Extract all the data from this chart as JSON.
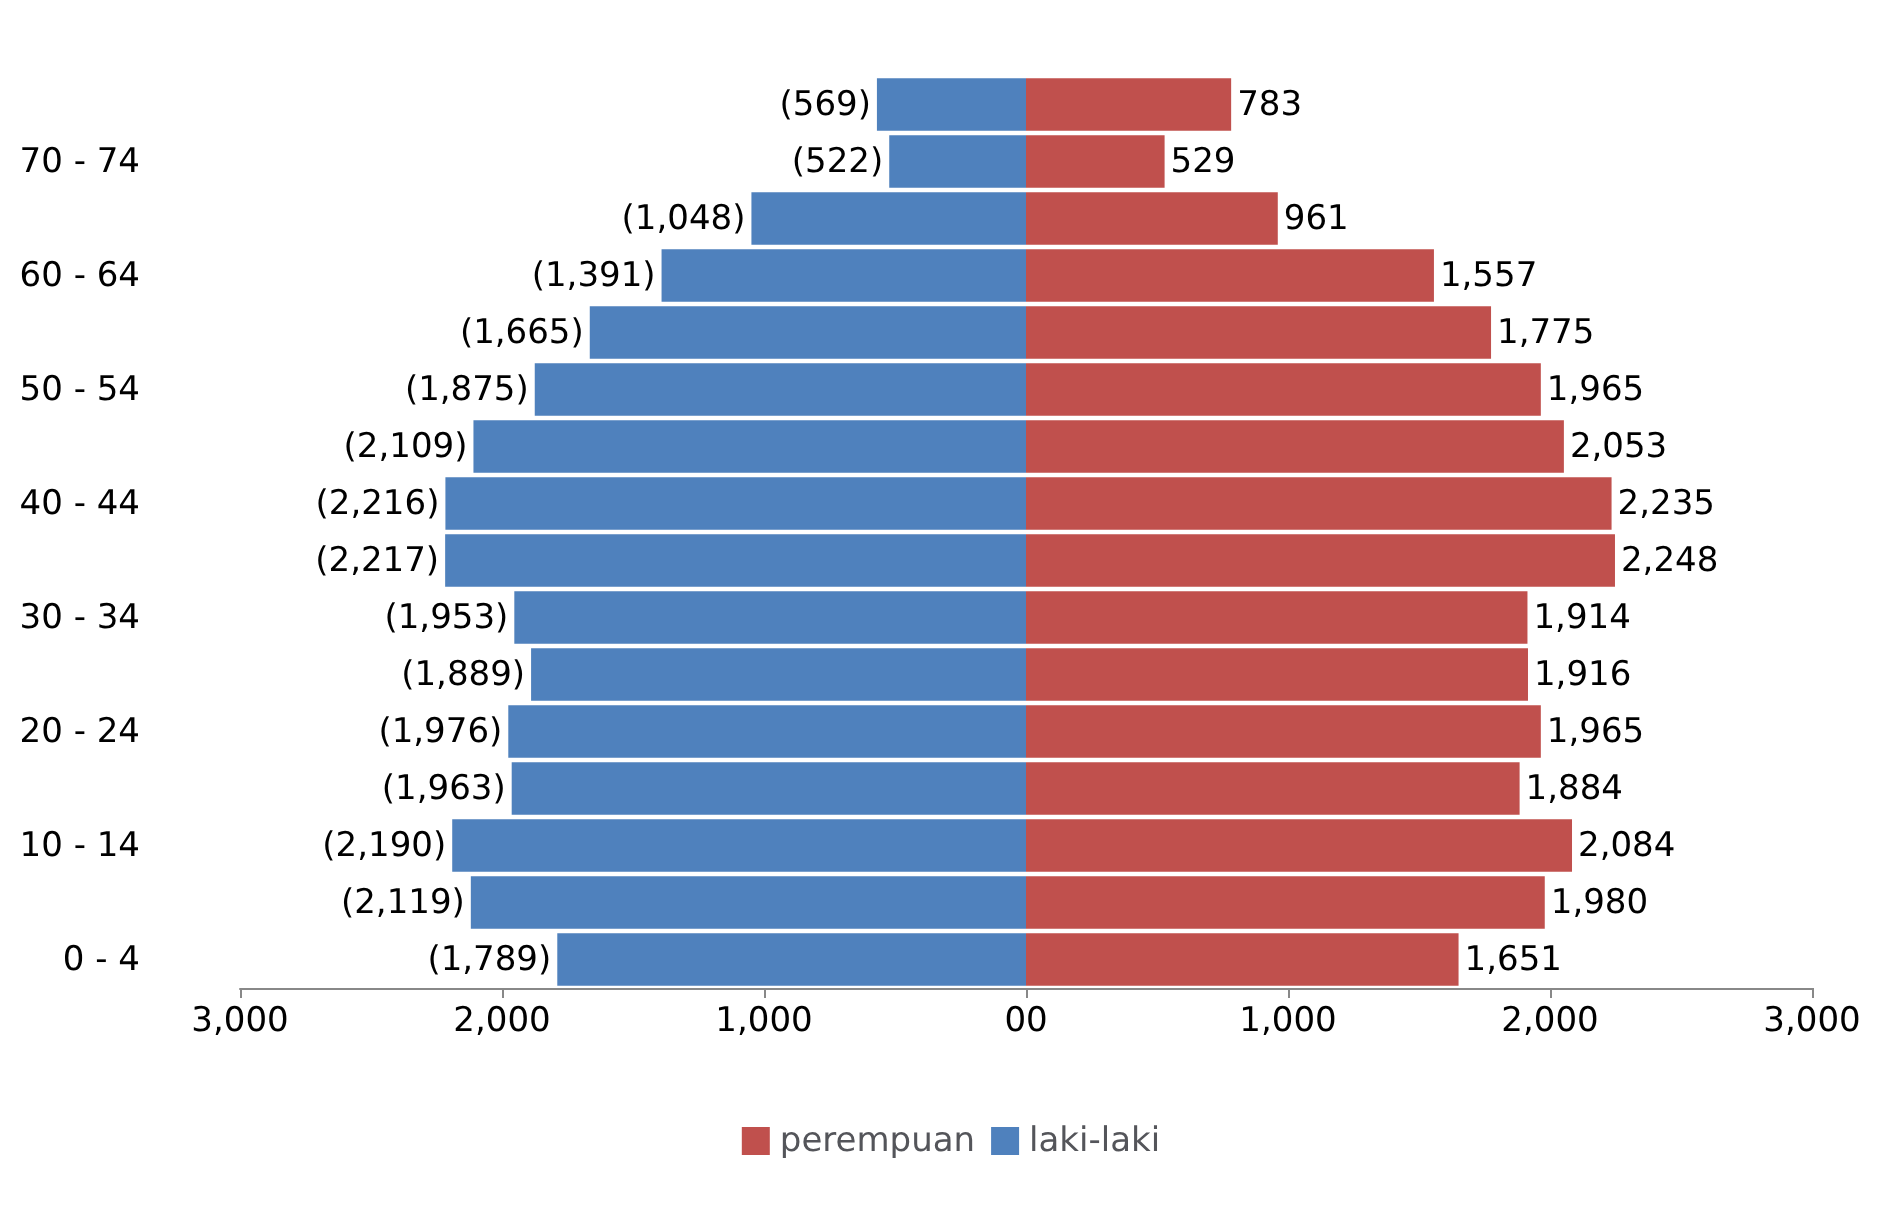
{
  "chart_data": {
    "type": "bar",
    "orientation": "horizontal",
    "stacked": true,
    "categories": [
      null,
      "70 - 74",
      null,
      "60 - 64",
      null,
      "50 - 54",
      null,
      "40 - 44",
      null,
      "30 - 34",
      null,
      "20 - 24",
      null,
      "10 - 14",
      null,
      "0 - 4"
    ],
    "series": [
      {
        "name": "perempuan",
        "color": "#c0504d",
        "values": [
          783,
          529,
          961,
          1557,
          1775,
          1965,
          2053,
          2235,
          2248,
          1914,
          1916,
          1965,
          1884,
          2084,
          1980,
          1651
        ],
        "value_labels": [
          "783",
          "529",
          "961",
          "1,557",
          "1,775",
          "1,965",
          "2,053",
          "2,235",
          "2,248",
          "1,914",
          "1,916",
          "1,965",
          "1,884",
          "2,084",
          "1,980",
          "1,651"
        ]
      },
      {
        "name": "laki-laki",
        "color": "#4f81bd",
        "values": [
          -569,
          -522,
          -1048,
          -1391,
          -1665,
          -1875,
          -2109,
          -2216,
          -2217,
          -1953,
          -1889,
          -1976,
          -1963,
          -2190,
          -2119,
          -1789
        ],
        "value_labels": [
          "(569)",
          "(522)",
          "(1,048)",
          "(1,391)",
          "(1,665)",
          "(1,875)",
          "(2,109)",
          "(2,216)",
          "(2,217)",
          "(1,953)",
          "(1,889)",
          "(1,976)",
          "(1,963)",
          "(2,190)",
          "(2,119)",
          "(1,789)"
        ]
      }
    ],
    "xlim": [
      -3000,
      3000
    ],
    "xticks": [
      {
        "value": -3000,
        "label": "3,000"
      },
      {
        "value": -2000,
        "label": "2,000"
      },
      {
        "value": -1000,
        "label": "1,000"
      },
      {
        "value": 0,
        "label": "00"
      },
      {
        "value": 1000,
        "label": "1,000"
      },
      {
        "value": 2000,
        "label": "2,000"
      },
      {
        "value": 3000,
        "label": "3,000"
      }
    ],
    "grid": false,
    "legend": "bottom"
  }
}
